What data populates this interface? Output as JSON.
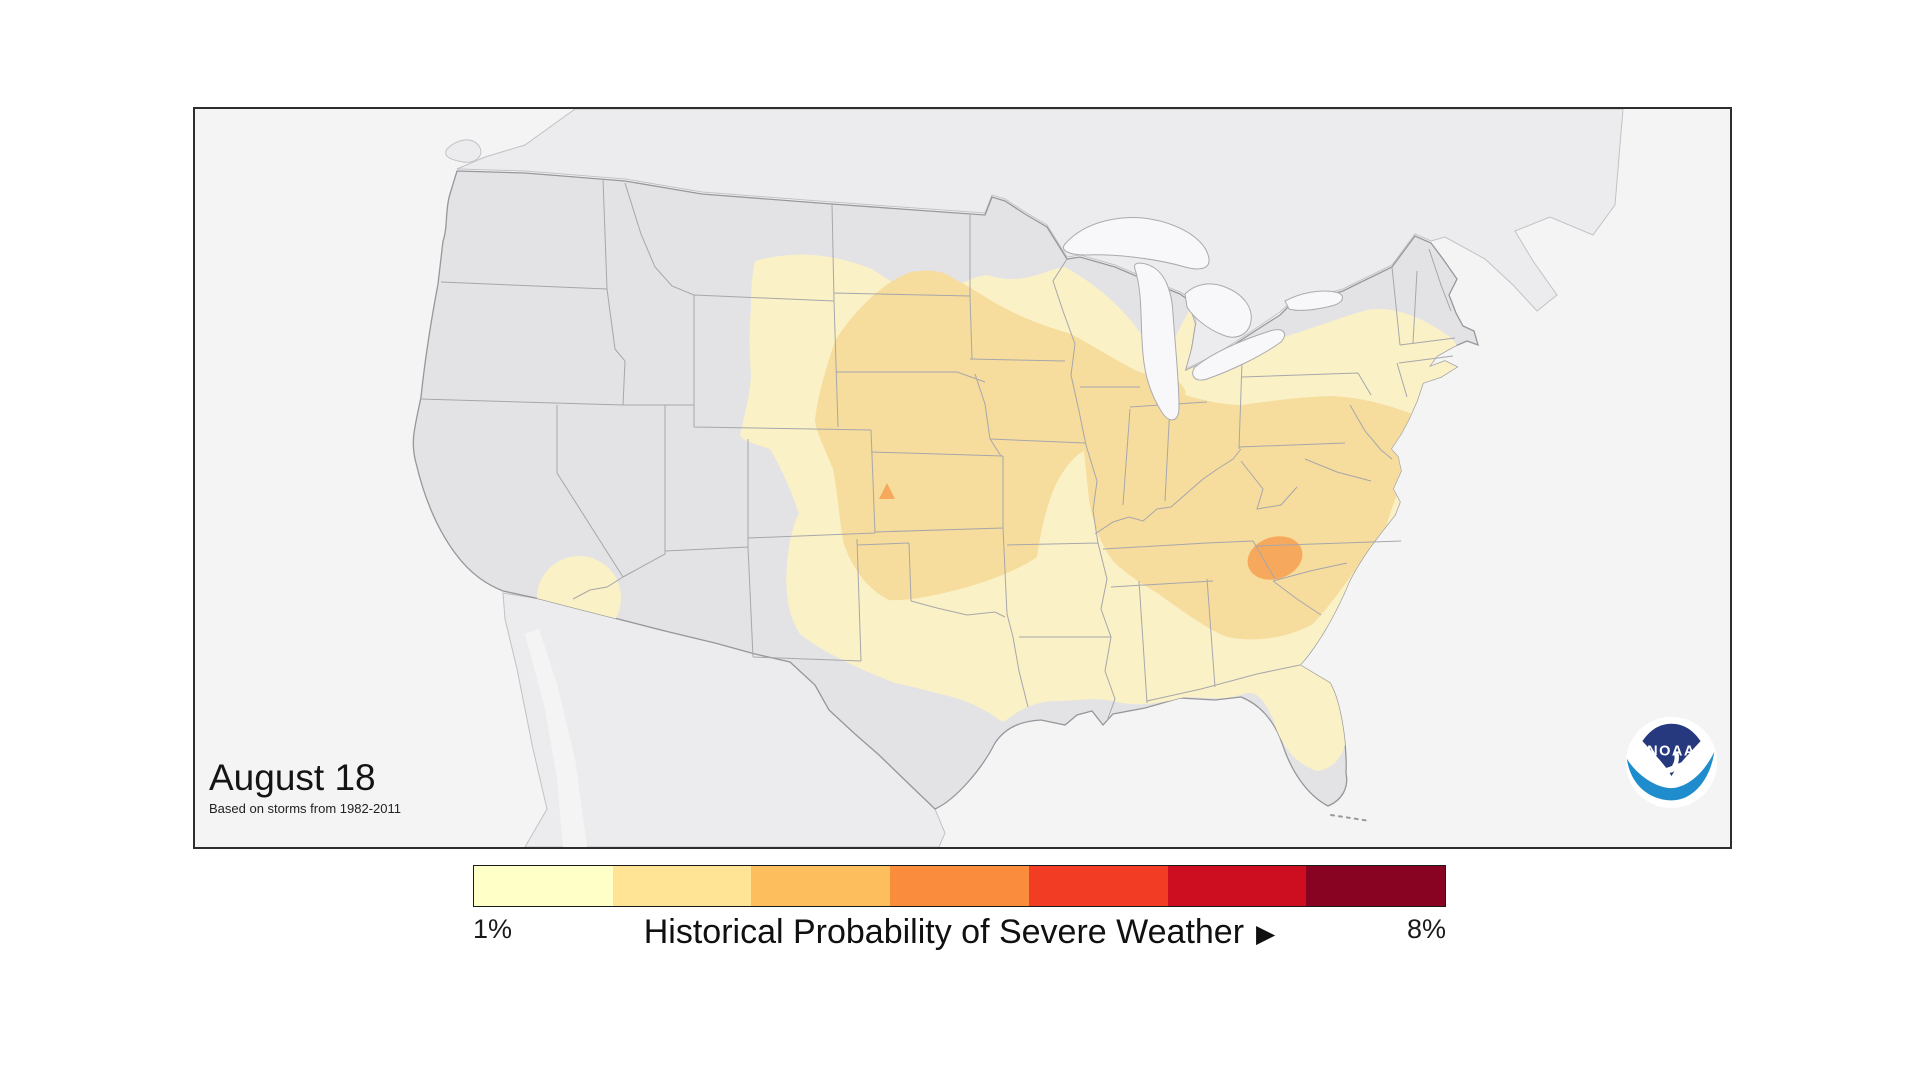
{
  "map_panel": {
    "date_label": "August 18",
    "subtitle": "Based on storms from 1982-2011",
    "noaa_logo_text": "NOAA",
    "colors": {
      "water": "#F4F4F5",
      "us_land": "#E3E3E6",
      "neighbor_land": "#ECECEE",
      "lakes": "#F8F8FA",
      "level1_fill": "#FAF1C6",
      "level2_fill": "#F6DC9D",
      "level3_fill": "#F6A95C",
      "logo_navy": "#27397E",
      "logo_blue": "#1F8DCD"
    }
  },
  "legend": {
    "min_label": "1%",
    "max_label": "8%",
    "title": "Historical Probability of Severe Weather",
    "arrow_icon": "▶",
    "colors": [
      "#FFFFC8",
      "#FEE494",
      "#FDBF5D",
      "#F98C3D",
      "#F23C24",
      "#CD0E20",
      "#880222"
    ]
  },
  "chart_data": {
    "type": "heatmap",
    "subtype": "geographic-probability-contour-map",
    "region": "Contiguous United States",
    "date": "August 18",
    "basis_note": "Based on storms from 1982-2011",
    "title": "Historical Probability of Severe Weather",
    "scale": {
      "min_pct": 1,
      "max_pct": 8,
      "unit": "%",
      "palette": [
        "#FFFFC8",
        "#FEE494",
        "#FDBF5D",
        "#F98C3D",
        "#F23C24",
        "#CD0E20",
        "#880222"
      ]
    },
    "legend_position": "bottom-center",
    "areas": [
      {
        "area": "Broad region: Northern Plains through Midwest, South, Southeast and East Coast to Massachusetts, plus most of Florida peninsula",
        "probability_pct": 2
      },
      {
        "area": "Southwest Arizona near Yuma (isolated circular area)",
        "probability_pct": 2
      },
      {
        "area": "Central Plains: Nebraska, Kansas, Oklahoma, Iowa, Missouri, South Dakota",
        "probability_pct": 3
      },
      {
        "area": "Ohio Valley and Mid-Atlantic: Illinois, Indiana, Ohio, Kentucky, Tennessee, Pennsylvania, New Jersey, Virginia, North Carolina, north Georgia",
        "probability_pct": 3
      },
      {
        "area": "Central Kansas (small spot)",
        "probability_pct": 4
      },
      {
        "area": "Northwest South Carolina / southwest North Carolina (small area)",
        "probability_pct": 4
      },
      {
        "area": "Western US, far northern tier, south Texas, Gulf Coast strip, south Florida",
        "probability_pct": 1
      }
    ]
  }
}
